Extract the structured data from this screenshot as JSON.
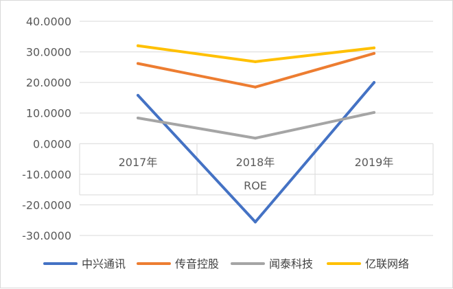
{
  "chart_data": {
    "type": "line",
    "title": "",
    "xlabel": "ROE",
    "ylabel": "",
    "categories": [
      "2017年",
      "2018年",
      "2019年"
    ],
    "ylim": [
      -30,
      40
    ],
    "yticks": [
      "40.0000",
      "30.0000",
      "20.0000",
      "10.0000",
      "0.0000",
      "-10.0000",
      "-20.0000",
      "-30.0000"
    ],
    "grid": true,
    "legend_position": "bottom",
    "series": [
      {
        "name": "中兴通讯",
        "color": "#4472C4",
        "values": [
          15.8,
          -25.6,
          20.0
        ]
      },
      {
        "name": "传音控股",
        "color": "#ED7D31",
        "values": [
          26.2,
          18.5,
          29.5
        ]
      },
      {
        "name": "闻泰科技",
        "color": "#A5A5A5",
        "values": [
          8.4,
          1.8,
          10.2
        ]
      },
      {
        "name": "亿联网络",
        "color": "#FFC000",
        "values": [
          32.0,
          26.8,
          31.3
        ]
      }
    ]
  }
}
